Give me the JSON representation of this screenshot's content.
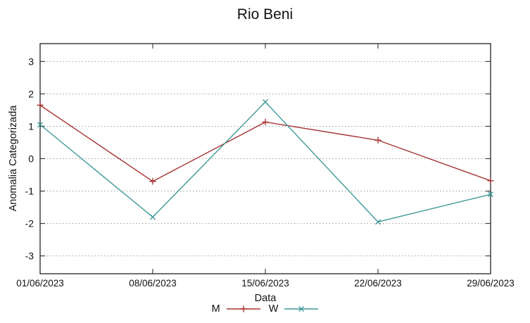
{
  "chart_data": {
    "type": "line",
    "title": "Rio Beni",
    "xlabel": "Data",
    "ylabel": "Anomalia Categorizada",
    "categories": [
      "01/06/2023",
      "08/06/2023",
      "15/06/2023",
      "22/06/2023",
      "29/06/2023"
    ],
    "yticks": [
      3,
      2,
      1,
      0,
      -1,
      -2,
      -3
    ],
    "ylim": [
      -3.55,
      3.55
    ],
    "grid": "horizontal-dotted",
    "legend_position": "bottom-center",
    "series": [
      {
        "name": "M",
        "color": "#a63232",
        "marker": "plus",
        "values": [
          1.65,
          -0.7,
          1.13,
          0.57,
          -0.68
        ]
      },
      {
        "name": "W",
        "color": "#3f9898",
        "marker": "cross",
        "values": [
          1.05,
          -1.8,
          1.75,
          -1.95,
          -1.1
        ]
      }
    ]
  }
}
